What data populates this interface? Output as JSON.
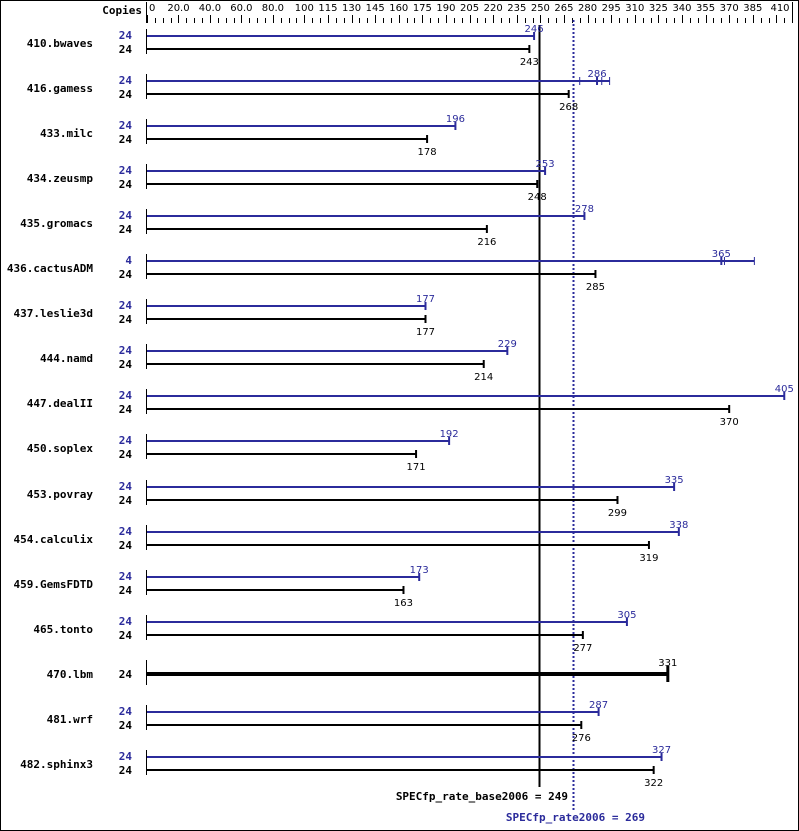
{
  "chart_data": {
    "type": "bar",
    "title": "",
    "xlabel": "",
    "ylabel": "",
    "copies_header": "Copies",
    "axis": {
      "min": 0,
      "max": 410,
      "ticks": [
        "0",
        "20.0",
        "40.0",
        "60.0",
        "80.0",
        "100",
        "115",
        "130",
        "145",
        "160",
        "175",
        "190",
        "205",
        "220",
        "235",
        "250",
        "265",
        "280",
        "295",
        "310",
        "325",
        "340",
        "355",
        "370",
        "385",
        "410"
      ],
      "tick_values": [
        0,
        20,
        40,
        60,
        80,
        100,
        115,
        130,
        145,
        160,
        175,
        190,
        205,
        220,
        235,
        250,
        265,
        280,
        295,
        310,
        325,
        340,
        355,
        370,
        385,
        410
      ]
    },
    "colors": {
      "peak": "#2b2b9b",
      "base": "#000000"
    },
    "series_names": [
      "peak",
      "base"
    ],
    "categories": [
      "410.bwaves",
      "416.gamess",
      "433.milc",
      "434.zeusmp",
      "435.gromacs",
      "436.cactusADM",
      "437.leslie3d",
      "444.namd",
      "447.dealII",
      "450.soplex",
      "453.povray",
      "454.calculix",
      "459.GemsFDTD",
      "465.tonto",
      "470.lbm",
      "481.wrf",
      "482.sphinx3"
    ],
    "rows": [
      {
        "name": "410.bwaves",
        "peak_copies": "24",
        "peak": 246,
        "base_copies": "24",
        "base": 243
      },
      {
        "name": "416.gamess",
        "peak_copies": "24",
        "peak": 286,
        "peak_ticks": [
          275,
          289,
          294
        ],
        "base_copies": "24",
        "base": 268
      },
      {
        "name": "433.milc",
        "peak_copies": "24",
        "peak": 196,
        "base_copies": "24",
        "base": 178
      },
      {
        "name": "434.zeusmp",
        "peak_copies": "24",
        "peak": 253,
        "base_copies": "24",
        "base": 248
      },
      {
        "name": "435.gromacs",
        "peak_copies": "24",
        "peak": 278,
        "base_copies": "24",
        "base": 216
      },
      {
        "name": "436.cactusADM",
        "peak_copies": "4",
        "peak": 365,
        "peak_ticks": [
          367,
          386
        ],
        "base_copies": "24",
        "base": 285
      },
      {
        "name": "437.leslie3d",
        "peak_copies": "24",
        "peak": 177,
        "base_copies": "24",
        "base": 177
      },
      {
        "name": "444.namd",
        "peak_copies": "24",
        "peak": 229,
        "base_copies": "24",
        "base": 214
      },
      {
        "name": "447.dealII",
        "peak_copies": "24",
        "peak": 405,
        "base_copies": "24",
        "base": 370
      },
      {
        "name": "450.soplex",
        "peak_copies": "24",
        "peak": 192,
        "base_copies": "24",
        "base": 171
      },
      {
        "name": "453.povray",
        "peak_copies": "24",
        "peak": 335,
        "base_copies": "24",
        "base": 299
      },
      {
        "name": "454.calculix",
        "peak_copies": "24",
        "peak": 338,
        "base_copies": "24",
        "base": 319
      },
      {
        "name": "459.GemsFDTD",
        "peak_copies": "24",
        "peak": 173,
        "base_copies": "24",
        "base": 163
      },
      {
        "name": "465.tonto",
        "peak_copies": "24",
        "peak": 305,
        "base_copies": "24",
        "base": 277
      },
      {
        "name": "470.lbm",
        "peak_copies": null,
        "peak": null,
        "base_copies": "24",
        "base": 331,
        "combined": true
      },
      {
        "name": "481.wrf",
        "peak_copies": "24",
        "peak": 287,
        "base_copies": "24",
        "base": 276
      },
      {
        "name": "482.sphinx3",
        "peak_copies": "24",
        "peak": 327,
        "base_copies": "24",
        "base": 322
      }
    ],
    "series": [
      {
        "name": "peak",
        "values": [
          246,
          286,
          196,
          253,
          278,
          365,
          177,
          229,
          405,
          192,
          335,
          338,
          173,
          305,
          null,
          287,
          327
        ]
      },
      {
        "name": "base",
        "values": [
          243,
          268,
          178,
          248,
          216,
          285,
          177,
          214,
          370,
          171,
          299,
          319,
          163,
          277,
          331,
          276,
          322
        ]
      }
    ],
    "reference_lines": [
      {
        "name": "base",
        "label": "SPECfp_rate_base2006 = 249",
        "value": 249,
        "style": "solid",
        "color": "#000000"
      },
      {
        "name": "peak",
        "label": "SPECfp_rate2006 = 269",
        "value": 269,
        "style": "dotted",
        "color": "#2b2b9b"
      }
    ],
    "legend_position": "none",
    "grid": false
  }
}
